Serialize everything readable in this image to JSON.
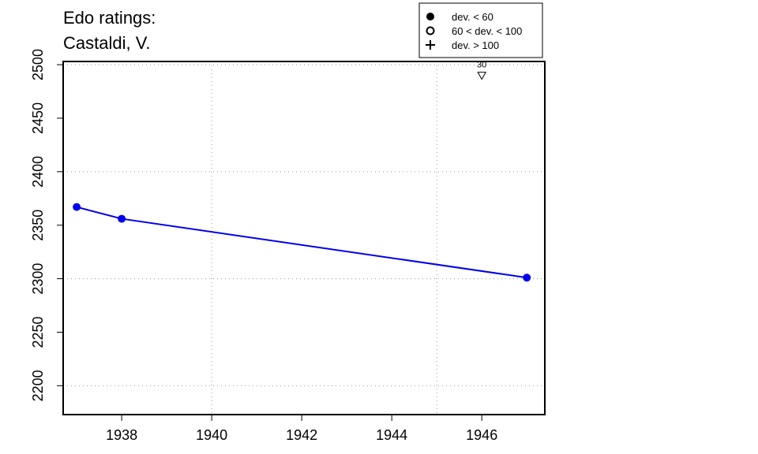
{
  "chart_data": {
    "type": "line",
    "title": [
      "Edo ratings:",
      "Castaldi, V."
    ],
    "xlabel": "",
    "ylabel": "",
    "xlim": [
      1936.7,
      1947.4
    ],
    "ylim": [
      2173,
      2503
    ],
    "xticks": [
      1938,
      1940,
      1942,
      1944,
      1946
    ],
    "yticks": [
      2200,
      2250,
      2300,
      2350,
      2400,
      2450,
      2500
    ],
    "x_gridlines": [
      1940,
      1945
    ],
    "y_gridlines": [
      2200,
      2300,
      2400,
      2500
    ],
    "grid": "dotted",
    "series": [
      {
        "color": "#0000ee",
        "points": [
          {
            "x": 1937,
            "y": 2367
          },
          {
            "x": 1938,
            "y": 2356
          },
          {
            "x": 1947,
            "y": 2301
          }
        ]
      }
    ],
    "annotations": [
      {
        "x": 1946,
        "y": 2490,
        "symbol": "down-triangle",
        "label": "30"
      }
    ],
    "legend": {
      "placement": "top-right",
      "entries": [
        {
          "symbol": "filled-circle",
          "label": "dev. < 60"
        },
        {
          "symbol": "open-circle",
          "label": "60 < dev. < 100"
        },
        {
          "symbol": "plus",
          "label": "dev. > 100"
        }
      ]
    }
  }
}
